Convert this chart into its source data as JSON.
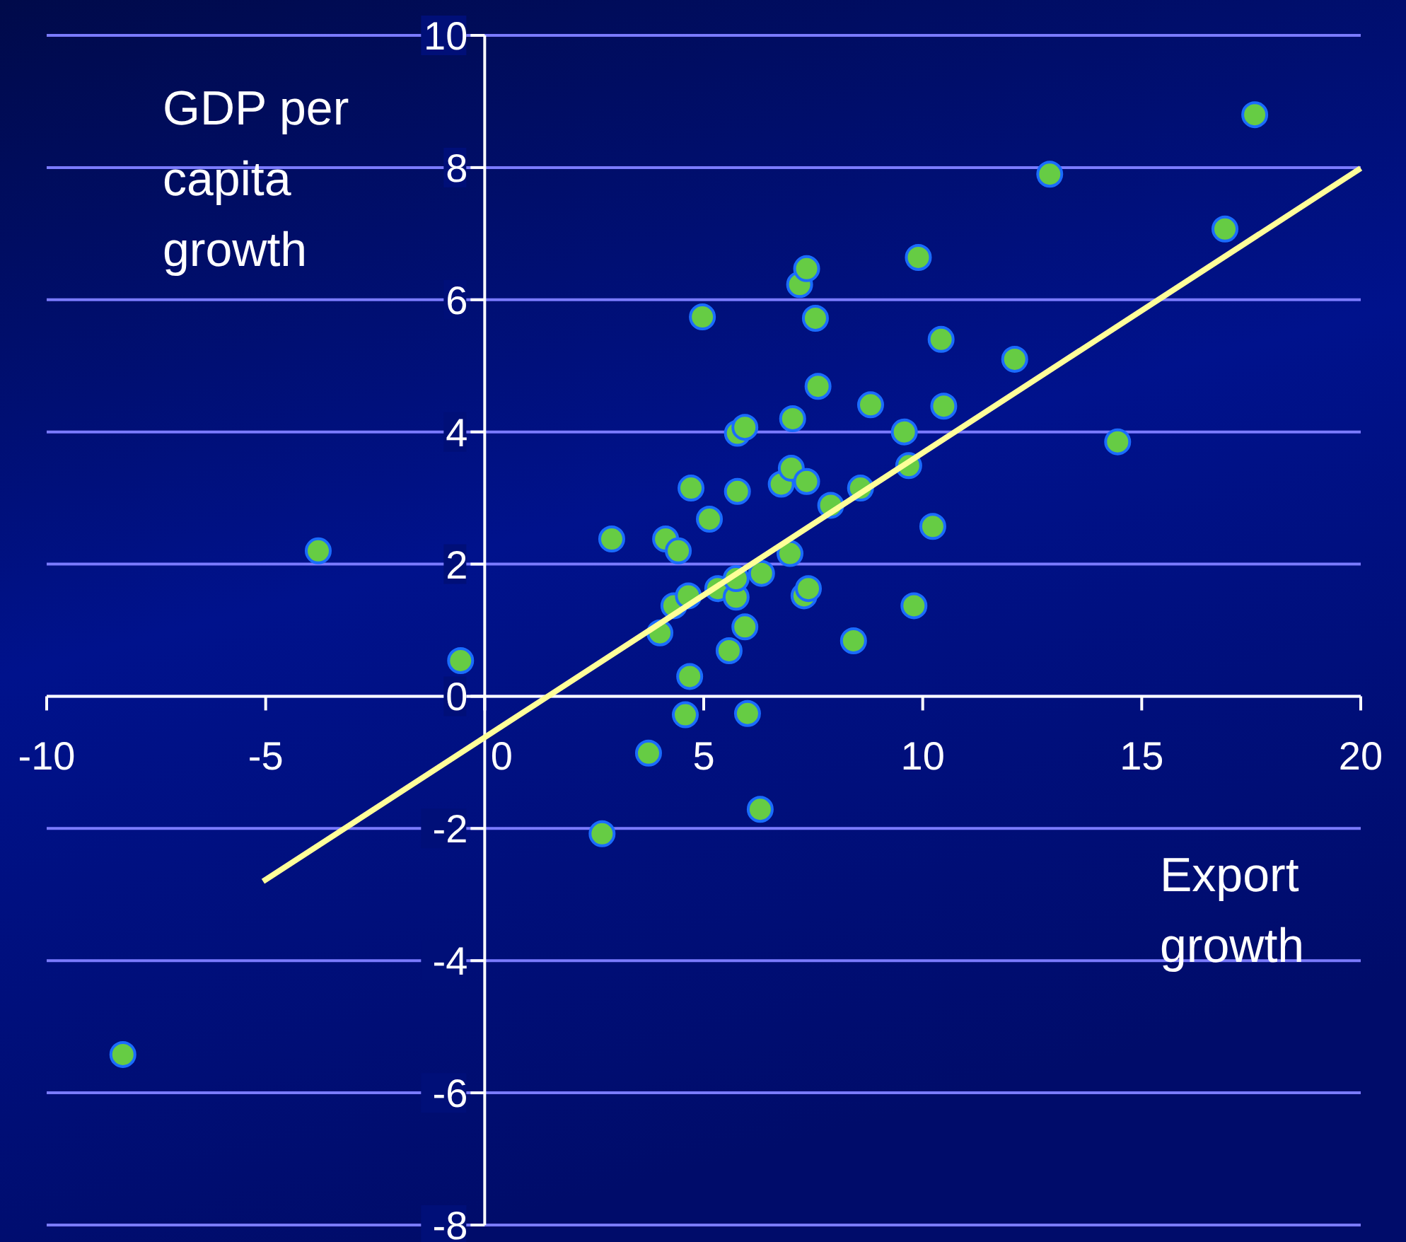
{
  "chart_data": {
    "type": "scatter",
    "xlabel": "Export growth",
    "ylabel": "GDP per capita growth",
    "xlim": [
      -10,
      20
    ],
    "ylim": [
      -8,
      10
    ],
    "xticks": [
      -10,
      -5,
      0,
      5,
      10,
      15,
      20
    ],
    "yticks": [
      -8,
      -6,
      -4,
      -2,
      0,
      2,
      4,
      6,
      8,
      10
    ],
    "grid": "y",
    "marker": "circle",
    "series": [
      {
        "type": "scatter",
        "color": "#66cc44",
        "x": [
          -8.26,
          -3.8,
          -0.55,
          2.9,
          2.68,
          3.74,
          4.0,
          4.13,
          4.42,
          4.32,
          4.58,
          4.68,
          4.65,
          4.71,
          4.97,
          5.13,
          5.32,
          5.58,
          5.74,
          5.74,
          5.77,
          5.77,
          5.94,
          5.94,
          6.0,
          6.32,
          6.29,
          6.77,
          6.97,
          7.0,
          7.03,
          7.19,
          7.35,
          7.29,
          7.39,
          7.35,
          7.55,
          7.61,
          7.9,
          8.58,
          8.42,
          8.81,
          9.58,
          9.68,
          9.8,
          9.9,
          10.23,
          10.42,
          10.48,
          12.1,
          12.9,
          14.45,
          16.9,
          17.58
        ],
        "values": [
          -5.42,
          2.2,
          0.54,
          2.38,
          -2.08,
          -0.86,
          0.96,
          2.38,
          2.2,
          1.37,
          -0.28,
          0.3,
          1.52,
          3.15,
          5.74,
          2.68,
          1.63,
          0.69,
          1.5,
          1.78,
          3.1,
          3.98,
          4.07,
          1.05,
          -0.26,
          1.86,
          -1.71,
          3.21,
          2.16,
          3.45,
          4.2,
          6.23,
          6.47,
          1.52,
          1.63,
          3.25,
          5.72,
          4.69,
          2.89,
          3.15,
          0.84,
          4.41,
          4.0,
          3.49,
          1.37,
          6.64,
          2.57,
          5.4,
          4.39,
          5.1,
          7.9,
          3.85,
          7.07,
          8.8
        ]
      },
      {
        "type": "line",
        "color": "#ffff99",
        "marker": "none",
        "x": [
          -5.06,
          20
        ],
        "values": [
          -2.8,
          7.99
        ]
      }
    ]
  }
}
